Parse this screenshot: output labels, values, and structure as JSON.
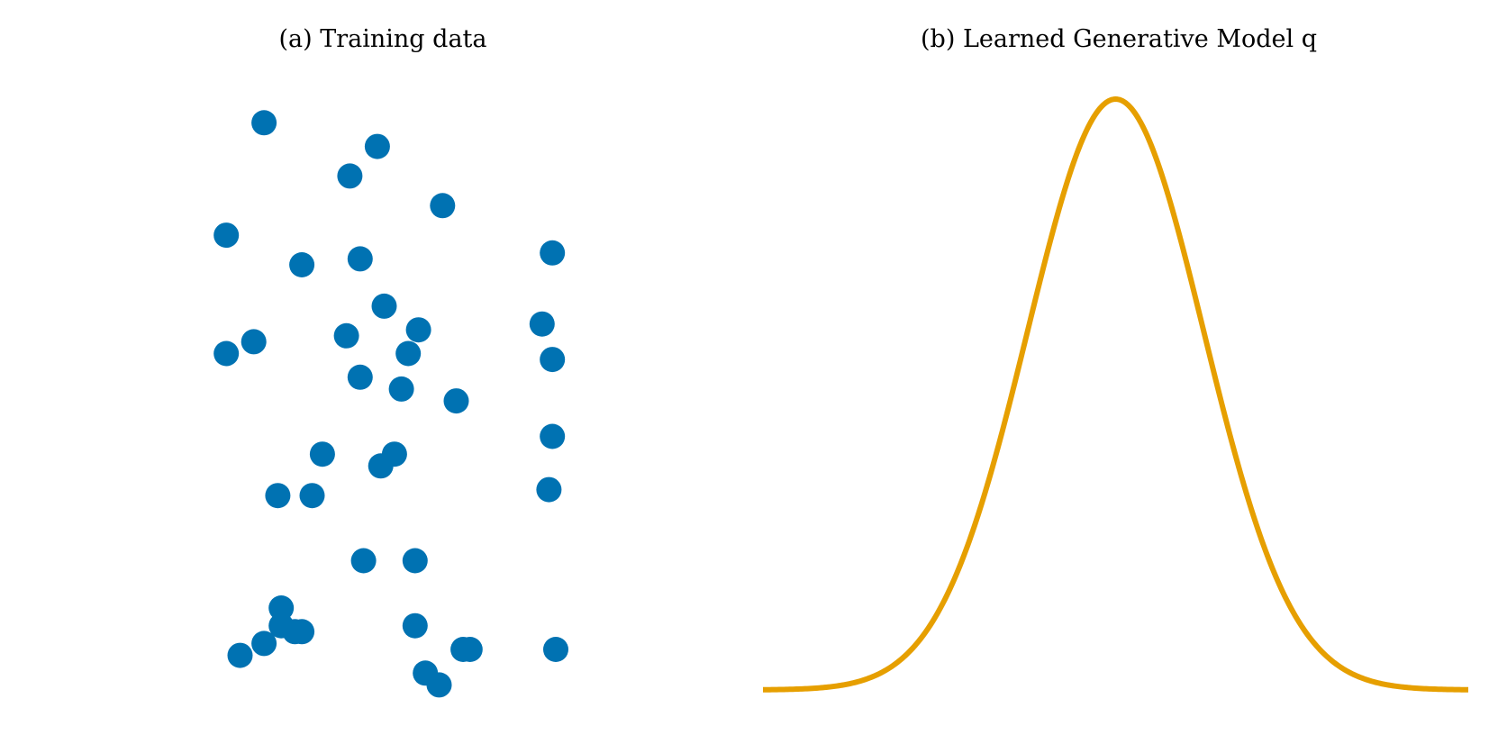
{
  "colors": {
    "scatter": "#0072B2",
    "curve": "#E69F00",
    "background": "#ffffff"
  },
  "chart_data": [
    {
      "type": "scatter",
      "title": "(a) Training data",
      "xlabel": "",
      "ylabel": "",
      "axes_visible": false,
      "grid": false,
      "xlim": [
        0,
        1
      ],
      "ylim": [
        0,
        1
      ],
      "points": [
        {
          "x": 0.15,
          "y": 0.96
        },
        {
          "x": 0.48,
          "y": 0.92
        },
        {
          "x": 0.4,
          "y": 0.87
        },
        {
          "x": 0.67,
          "y": 0.82
        },
        {
          "x": 0.04,
          "y": 0.77
        },
        {
          "x": 0.99,
          "y": 0.74
        },
        {
          "x": 0.26,
          "y": 0.72
        },
        {
          "x": 0.43,
          "y": 0.73
        },
        {
          "x": 0.5,
          "y": 0.65
        },
        {
          "x": 0.6,
          "y": 0.61
        },
        {
          "x": 0.96,
          "y": 0.62
        },
        {
          "x": 0.04,
          "y": 0.57
        },
        {
          "x": 0.12,
          "y": 0.59
        },
        {
          "x": 0.39,
          "y": 0.6
        },
        {
          "x": 0.57,
          "y": 0.57
        },
        {
          "x": 0.99,
          "y": 0.56
        },
        {
          "x": 0.43,
          "y": 0.53
        },
        {
          "x": 0.55,
          "y": 0.51
        },
        {
          "x": 0.71,
          "y": 0.49
        },
        {
          "x": 0.99,
          "y": 0.43
        },
        {
          "x": 0.32,
          "y": 0.4
        },
        {
          "x": 0.49,
          "y": 0.38
        },
        {
          "x": 0.53,
          "y": 0.4
        },
        {
          "x": 0.19,
          "y": 0.33
        },
        {
          "x": 0.29,
          "y": 0.33
        },
        {
          "x": 0.98,
          "y": 0.34
        },
        {
          "x": 0.44,
          "y": 0.22
        },
        {
          "x": 0.59,
          "y": 0.22
        },
        {
          "x": 0.2,
          "y": 0.14
        },
        {
          "x": 0.2,
          "y": 0.11
        },
        {
          "x": 0.24,
          "y": 0.1
        },
        {
          "x": 0.26,
          "y": 0.1
        },
        {
          "x": 0.59,
          "y": 0.11
        },
        {
          "x": 0.08,
          "y": 0.06
        },
        {
          "x": 0.15,
          "y": 0.08
        },
        {
          "x": 0.73,
          "y": 0.07
        },
        {
          "x": 0.75,
          "y": 0.07
        },
        {
          "x": 1.0,
          "y": 0.07
        },
        {
          "x": 0.62,
          "y": 0.03
        },
        {
          "x": 0.66,
          "y": 0.01
        }
      ]
    },
    {
      "type": "line",
      "title": "(b) Learned Generative Model q",
      "xlabel": "",
      "ylabel": "",
      "axes_visible": false,
      "grid": false,
      "curve": "gaussian",
      "xlim": [
        -4,
        4
      ],
      "mean": 0,
      "std": 1,
      "ylim": [
        0,
        1
      ]
    }
  ]
}
